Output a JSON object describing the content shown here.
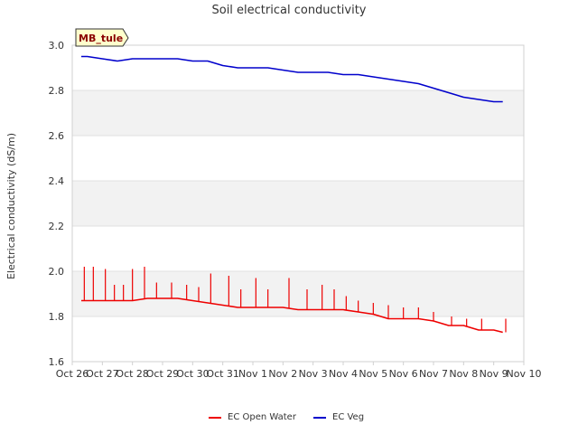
{
  "chart_data": {
    "type": "line",
    "title": "Soil electrical conductivity",
    "xlabel": "",
    "ylabel": "Electrical conductivity (dS/m)",
    "site_badge": "MB_tule",
    "x_tick_labels": [
      "Oct 26",
      "Oct 27",
      "Oct 28",
      "Oct 29",
      "Oct 30",
      "Oct 31",
      "Nov 1",
      "Nov 2",
      "Nov 3",
      "Nov 4",
      "Nov 5",
      "Nov 6",
      "Nov 7",
      "Nov 8",
      "Nov 9",
      "Nov 10"
    ],
    "xlim": [
      0,
      15
    ],
    "ylim": [
      1.6,
      3.0
    ],
    "y_ticks": [
      "1.6",
      "1.8",
      "2.0",
      "2.2",
      "2.4",
      "2.6",
      "2.8",
      "3.0"
    ],
    "legend_placement": "bottom-center",
    "series": [
      {
        "name": "EC Open Water",
        "color": "#ee0000",
        "x": [
          0.3,
          1,
          1.5,
          2,
          2.5,
          3,
          3.5,
          4,
          4.5,
          5,
          5.5,
          6,
          6.5,
          7,
          7.5,
          8,
          8.5,
          9,
          9.5,
          10,
          10.5,
          11,
          11.5,
          12,
          12.5,
          13,
          13.5,
          14,
          14.3
        ],
        "values": [
          1.87,
          1.87,
          1.87,
          1.87,
          1.88,
          1.88,
          1.88,
          1.87,
          1.86,
          1.85,
          1.84,
          1.84,
          1.84,
          1.84,
          1.83,
          1.83,
          1.83,
          1.83,
          1.82,
          1.81,
          1.79,
          1.79,
          1.79,
          1.78,
          1.76,
          1.76,
          1.74,
          1.74,
          1.73
        ],
        "spikes": [
          {
            "x": 0.4,
            "y": 2.02
          },
          {
            "x": 0.7,
            "y": 2.02
          },
          {
            "x": 1.1,
            "y": 2.01
          },
          {
            "x": 1.4,
            "y": 1.94
          },
          {
            "x": 1.7,
            "y": 1.94
          },
          {
            "x": 2.0,
            "y": 2.01
          },
          {
            "x": 2.4,
            "y": 2.02
          },
          {
            "x": 2.8,
            "y": 1.95
          },
          {
            "x": 3.3,
            "y": 1.95
          },
          {
            "x": 3.8,
            "y": 1.94
          },
          {
            "x": 4.2,
            "y": 1.93
          },
          {
            "x": 4.6,
            "y": 1.99
          },
          {
            "x": 5.2,
            "y": 1.98
          },
          {
            "x": 5.6,
            "y": 1.92
          },
          {
            "x": 6.1,
            "y": 1.97
          },
          {
            "x": 6.5,
            "y": 1.92
          },
          {
            "x": 7.2,
            "y": 1.97
          },
          {
            "x": 7.8,
            "y": 1.92
          },
          {
            "x": 8.3,
            "y": 1.94
          },
          {
            "x": 8.7,
            "y": 1.92
          },
          {
            "x": 9.1,
            "y": 1.89
          },
          {
            "x": 9.5,
            "y": 1.87
          },
          {
            "x": 10.0,
            "y": 1.86
          },
          {
            "x": 10.5,
            "y": 1.85
          },
          {
            "x": 11.0,
            "y": 1.84
          },
          {
            "x": 11.5,
            "y": 1.84
          },
          {
            "x": 12.0,
            "y": 1.82
          },
          {
            "x": 12.6,
            "y": 1.8
          },
          {
            "x": 13.1,
            "y": 1.79
          },
          {
            "x": 13.6,
            "y": 1.79
          },
          {
            "x": 14.4,
            "y": 1.79
          }
        ]
      },
      {
        "name": "EC Veg",
        "color": "#0000cc",
        "x": [
          0.3,
          0.5,
          1,
          1.5,
          2,
          2.5,
          3,
          3.5,
          4,
          4.5,
          5,
          5.5,
          6,
          6.5,
          7,
          7.5,
          8,
          8.5,
          9,
          9.5,
          10,
          10.5,
          11,
          11.5,
          12,
          12.5,
          13,
          13.5,
          14,
          14.3
        ],
        "values": [
          2.95,
          2.95,
          2.94,
          2.93,
          2.94,
          2.94,
          2.94,
          2.94,
          2.93,
          2.93,
          2.91,
          2.9,
          2.9,
          2.9,
          2.89,
          2.88,
          2.88,
          2.88,
          2.87,
          2.87,
          2.86,
          2.85,
          2.84,
          2.83,
          2.81,
          2.79,
          2.77,
          2.76,
          2.75,
          2.75
        ]
      }
    ]
  }
}
